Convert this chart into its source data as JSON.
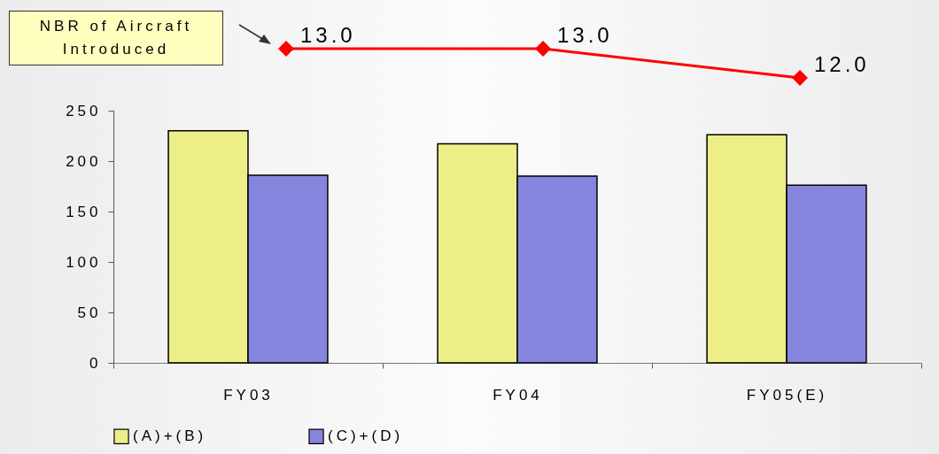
{
  "chart_data": [
    {
      "type": "line",
      "categories": [
        null,
        null,
        null
      ],
      "series": [
        {
          "name": "NBR of Aircraft Introduced",
          "color": "#ff0000",
          "values": [
            13,
            13,
            12
          ],
          "value_labels": [
            "13.0",
            "13.0",
            "12.0"
          ]
        }
      ],
      "marker": "diamond"
    },
    {
      "type": "bar",
      "categories": [
        "FY03",
        "FY04",
        "FY05(E)"
      ],
      "series": [
        {
          "name": "(A)+(B)",
          "color": "#eeee88",
          "values": [
            230,
            217,
            226
          ]
        },
        {
          "name": "(C)+(D)",
          "color": "#8585dd",
          "values": [
            186,
            185,
            176
          ]
        }
      ],
      "ylim": [
        0,
        250
      ],
      "yticks": [
        0,
        50,
        100,
        150,
        200,
        250
      ],
      "legend": "bottom",
      "grid": false
    }
  ]
}
